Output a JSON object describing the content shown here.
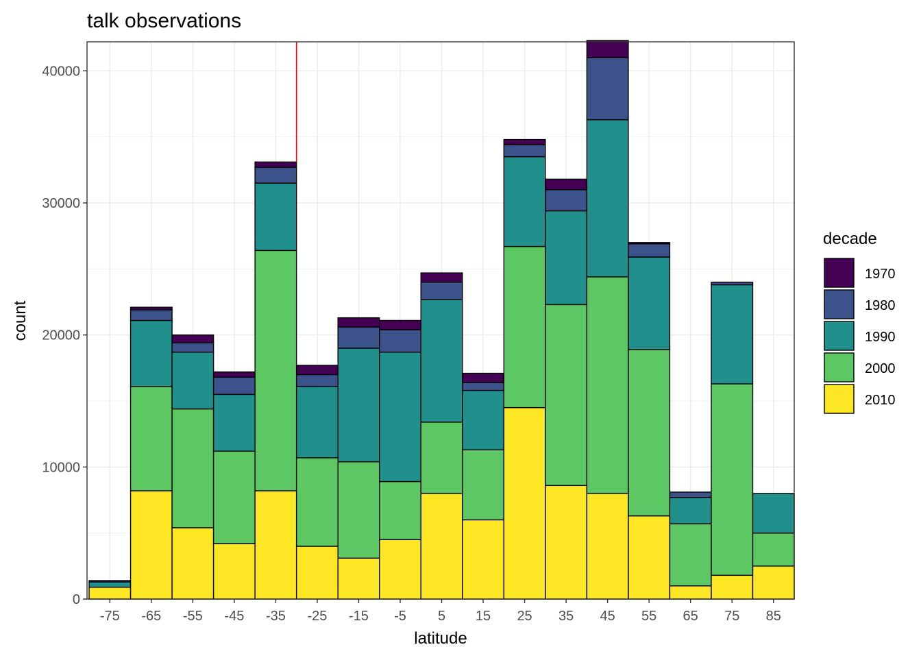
{
  "chart_data": {
    "type": "bar",
    "stacked": true,
    "title": "talk observations",
    "xlabel": "latitude",
    "ylabel": "count",
    "categories": [
      "-75",
      "-65",
      "-55",
      "-45",
      "-35",
      "-25",
      "-15",
      "-5",
      "5",
      "15",
      "25",
      "35",
      "45",
      "55",
      "65",
      "75",
      "85"
    ],
    "x": [
      -75,
      -65,
      -55,
      -45,
      -35,
      -25,
      -15,
      -5,
      5,
      15,
      25,
      35,
      45,
      55,
      65,
      75,
      85
    ],
    "xlim": [
      -80.5,
      90
    ],
    "ylim": [
      0,
      42200
    ],
    "yticks": [
      0,
      10000,
      20000,
      30000,
      40000
    ],
    "ytick_labels": [
      "0",
      "10000",
      "20000",
      "30000",
      "40000"
    ],
    "grid": true,
    "legend": {
      "title": "decade",
      "position": "right"
    },
    "series": [
      {
        "name": "2010",
        "color": "#FDE725",
        "values": [
          900,
          8200,
          5400,
          4200,
          8200,
          4000,
          3100,
          4500,
          8000,
          6000,
          14500,
          8600,
          8000,
          6300,
          1000,
          1800,
          2500
        ]
      },
      {
        "name": "2000",
        "color": "#5DC863",
        "values": [
          0,
          7900,
          9000,
          7000,
          18200,
          6700,
          7300,
          4400,
          5400,
          5300,
          12200,
          13700,
          16400,
          12600,
          4700,
          14500,
          2500
        ]
      },
      {
        "name": "1990",
        "color": "#21908C",
        "values": [
          400,
          5000,
          4300,
          4300,
          5100,
          5400,
          8600,
          9800,
          9300,
          4500,
          6800,
          7100,
          11900,
          7000,
          2000,
          7500,
          3000
        ]
      },
      {
        "name": "1980",
        "color": "#3B528B",
        "values": [
          100,
          800,
          700,
          1300,
          1200,
          900,
          1600,
          1700,
          1300,
          600,
          900,
          1600,
          4700,
          1000,
          400,
          200,
          0
        ]
      },
      {
        "name": "1970",
        "color": "#440154",
        "values": [
          0,
          200,
          600,
          400,
          400,
          700,
          700,
          700,
          700,
          700,
          400,
          800,
          1300,
          100,
          0,
          0,
          0
        ]
      }
    ],
    "annotations": [
      {
        "type": "vline",
        "x": -30,
        "from_y": 33100,
        "color": "#FF0000"
      }
    ]
  }
}
